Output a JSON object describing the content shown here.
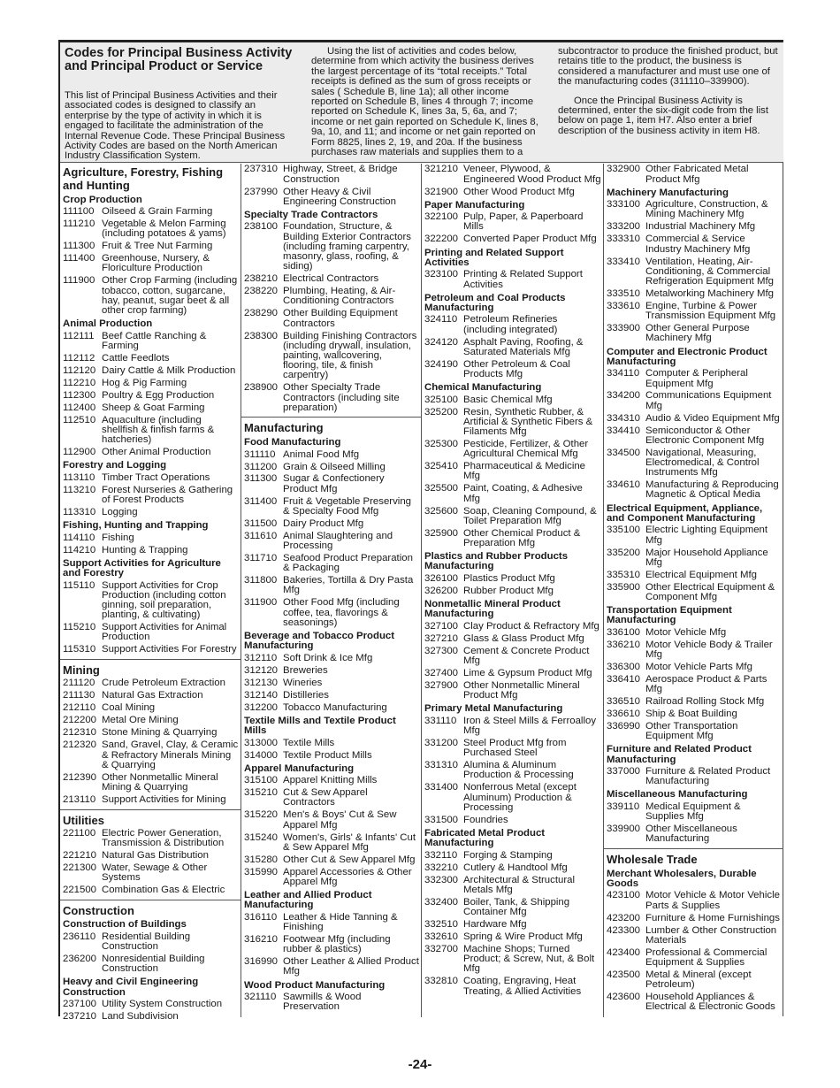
{
  "header": {
    "title": "Codes for Principal Business Activity and Principal Product or Service",
    "intro": "This list of Principal Business Activities and their associated codes is designed to classify an enterprise by the type of activity in which it is engaged to facilitate the administration of the Internal Revenue Code. These Principal Business Activity Codes are based on the North American Industry Classification System.",
    "middle": "Using the list of activities and codes below, determine from which activity the business derives the largest percentage of its “total receipts.” Total receipts is defined as the sum of gross receipts or sales ( Schedule B, line 1a); all other income reported on Schedule B, lines 4 through 7; income reported on Schedule K, lines 3a, 5, 6a, and 7; income or net gain reported on Schedule K, lines 8, 9a, 10, and 11; and income or net gain reported on Form 8825, lines 2, 19, and 20a. If the business purchases raw materials and supplies them to a",
    "right1": "subcontractor to produce the finished product, but retains title to the product, the business is considered a manufacturer and must use one of the manufacturing codes (311110–339900).",
    "right2": "Once the Principal Business Activity is determined, enter the six-digit code from the list below on page 1, item H7. Also enter a brief description of the business activity in item H8."
  },
  "columns": [
    [
      [
        "S",
        "Agriculture, Forestry, Fishing and Hunting"
      ],
      [
        "s",
        "Crop Production"
      ],
      [
        "111100",
        "Oilseed & Grain Farming"
      ],
      [
        "111210",
        "Vegetable & Melon Farming (including potatoes & yams)"
      ],
      [
        "111300",
        "Fruit & Tree Nut Farming"
      ],
      [
        "111400",
        "Greenhouse, Nursery, & Floriculture Production"
      ],
      [
        "111900",
        "Other Crop Farming (including tobacco, cotton, sugarcane, hay, peanut, sugar beet & all other crop farming)"
      ],
      [
        "s",
        "Animal Production"
      ],
      [
        "112111",
        "Beef Cattle Ranching & Farming"
      ],
      [
        "112112",
        "Cattle Feedlots"
      ],
      [
        "112120",
        "Dairy Cattle & Milk Production"
      ],
      [
        "112210",
        "Hog & Pig Farming"
      ],
      [
        "112300",
        "Poultry & Egg Production"
      ],
      [
        "112400",
        "Sheep & Goat Farming"
      ],
      [
        "112510",
        "Aquaculture (including shellfish & finfish farms & hatcheries)"
      ],
      [
        "112900",
        "Other Animal Production"
      ],
      [
        "s",
        "Forestry and Logging"
      ],
      [
        "113110",
        "Timber Tract Operations"
      ],
      [
        "113210",
        "Forest Nurseries & Gathering of Forest Products"
      ],
      [
        "113310",
        "Logging"
      ],
      [
        "s",
        "Fishing, Hunting and Trapping"
      ],
      [
        "114110",
        "Fishing"
      ],
      [
        "114210",
        "Hunting & Trapping"
      ],
      [
        "s",
        "Support Activities for Agriculture and Forestry"
      ],
      [
        "115110",
        "Support Activities for Crop Production (including cotton ginning, soil preparation, planting, & cultivating)"
      ],
      [
        "115210",
        "Support Activities for Animal Production"
      ],
      [
        "115310",
        "Support Activities For Forestry"
      ],
      [
        "S",
        "Mining"
      ],
      [
        "211120",
        "Crude Petroleum Extraction"
      ],
      [
        "211130",
        "Natural Gas Extraction"
      ],
      [
        "212110",
        "Coal Mining"
      ],
      [
        "212200",
        "Metal Ore Mining"
      ],
      [
        "212310",
        "Stone Mining & Quarrying"
      ],
      [
        "212320",
        "Sand, Gravel, Clay, & Ceramic & Refractory Minerals Mining & Quarrying"
      ],
      [
        "212390",
        "Other Nonmetallic Mineral Mining & Quarrying"
      ],
      [
        "213110",
        "Support Activities for Mining"
      ],
      [
        "S",
        "Utilities"
      ],
      [
        "221100",
        "Electric Power Generation, Transmission & Distribution"
      ],
      [
        "221210",
        "Natural Gas Distribution"
      ],
      [
        "221300",
        "Water, Sewage & Other Systems"
      ],
      [
        "221500",
        "Combination Gas & Electric"
      ],
      [
        "S",
        "Construction"
      ],
      [
        "s",
        "Construction of Buildings"
      ],
      [
        "236110",
        "Residential Building Construction"
      ],
      [
        "236200",
        "Nonresidential Building Construction"
      ],
      [
        "s",
        "Heavy and Civil Engineering Construction"
      ],
      [
        "237100",
        "Utility System Construction"
      ],
      [
        "237210",
        "Land Subdivision"
      ]
    ],
    [
      [
        "237310",
        "Highway, Street, & Bridge Construction"
      ],
      [
        "237990",
        "Other Heavy & Civil Engineering Construction"
      ],
      [
        "s",
        "Specialty Trade Contractors"
      ],
      [
        "238100",
        "Foundation, Structure, & Building Exterior Contractors (including framing carpentry, masonry, glass, roofing, & siding)"
      ],
      [
        "238210",
        "Electrical Contractors"
      ],
      [
        "238220",
        "Plumbing, Heating, & Air-Conditioning Contractors"
      ],
      [
        "238290",
        "Other Building Equipment Contractors"
      ],
      [
        "238300",
        "Building Finishing Contractors (including drywall, insulation, painting, wallcovering, flooring, tile, & finish carpentry)"
      ],
      [
        "238900",
        "Other Specialty Trade Contractors (including site preparation)"
      ],
      [
        "S",
        "Manufacturing"
      ],
      [
        "s",
        "Food Manufacturing"
      ],
      [
        "311110",
        "Animal Food Mfg"
      ],
      [
        "311200",
        "Grain & Oilseed Milling"
      ],
      [
        "311300",
        "Sugar & Confectionery Product Mfg"
      ],
      [
        "311400",
        "Fruit & Vegetable Preserving & Specialty Food Mfg"
      ],
      [
        "311500",
        "Dairy Product Mfg"
      ],
      [
        "311610",
        "Animal Slaughtering and Processing"
      ],
      [
        "311710",
        "Seafood Product Preparation & Packaging"
      ],
      [
        "311800",
        "Bakeries, Tortilla & Dry Pasta Mfg"
      ],
      [
        "311900",
        "Other Food Mfg (including coffee, tea, flavorings & seasonings)"
      ],
      [
        "s",
        "Beverage and Tobacco Product Manufacturing"
      ],
      [
        "312110",
        "Soft Drink & Ice Mfg"
      ],
      [
        "312120",
        "Breweries"
      ],
      [
        "312130",
        "Wineries"
      ],
      [
        "312140",
        "Distilleries"
      ],
      [
        "312200",
        "Tobacco Manufacturing"
      ],
      [
        "s",
        "Textile Mills and Textile Product Mills"
      ],
      [
        "313000",
        "Textile Mills"
      ],
      [
        "314000",
        "Textile Product Mills"
      ],
      [
        "s",
        "Apparel Manufacturing"
      ],
      [
        "315100",
        "Apparel Knitting Mills"
      ],
      [
        "315210",
        "Cut & Sew Apparel Contractors"
      ],
      [
        "315220",
        "Men's & Boys' Cut & Sew Apparel Mfg"
      ],
      [
        "315240",
        "Women's, Girls' & Infants' Cut & Sew Apparel Mfg"
      ],
      [
        "315280",
        "Other Cut & Sew Apparel Mfg"
      ],
      [
        "315990",
        "Apparel Accessories & Other Apparel Mfg"
      ],
      [
        "s",
        "Leather and Allied Product Manufacturing"
      ],
      [
        "316110",
        "Leather & Hide Tanning & Finishing"
      ],
      [
        "316210",
        "Footwear Mfg (including rubber & plastics)"
      ],
      [
        "316990",
        "Other Leather & Allied Product Mfg"
      ],
      [
        "s",
        "Wood Product Manufacturing"
      ],
      [
        "321110",
        "Sawmills & Wood Preservation"
      ]
    ],
    [
      [
        "321210",
        "Veneer, Plywood, & Engineered Wood Product Mfg"
      ],
      [
        "321900",
        "Other Wood Product Mfg"
      ],
      [
        "s",
        "Paper Manufacturing"
      ],
      [
        "322100",
        "Pulp, Paper, & Paperboard Mills"
      ],
      [
        "322200",
        "Converted Paper Product Mfg"
      ],
      [
        "s",
        "Printing and Related Support Activities"
      ],
      [
        "323100",
        "Printing & Related Support Activities"
      ],
      [
        "s",
        "Petroleum and Coal Products Manufacturing"
      ],
      [
        "324110",
        "Petroleum Refineries (including integrated)"
      ],
      [
        "324120",
        "Asphalt Paving, Roofing, & Saturated Materials Mfg"
      ],
      [
        "324190",
        "Other Petroleum & Coal Products Mfg"
      ],
      [
        "s",
        "Chemical Manufacturing"
      ],
      [
        "325100",
        "Basic Chemical Mfg"
      ],
      [
        "325200",
        "Resin, Synthetic Rubber, & Artificial & Synthetic Fibers & Filaments Mfg"
      ],
      [
        "325300",
        "Pesticide, Fertilizer, & Other Agricultural Chemical Mfg"
      ],
      [
        "325410",
        "Pharmaceutical & Medicine Mfg"
      ],
      [
        "325500",
        "Paint, Coating, & Adhesive Mfg"
      ],
      [
        "325600",
        "Soap, Cleaning Compound, & Toilet Preparation Mfg"
      ],
      [
        "325900",
        "Other Chemical Product & Preparation Mfg"
      ],
      [
        "s",
        "Plastics and Rubber Products Manufacturing"
      ],
      [
        "326100",
        "Plastics Product Mfg"
      ],
      [
        "326200",
        "Rubber Product Mfg"
      ],
      [
        "s",
        "Nonmetallic Mineral Product Manufacturing"
      ],
      [
        "327100",
        "Clay Product & Refractory Mfg"
      ],
      [
        "327210",
        "Glass & Glass Product Mfg"
      ],
      [
        "327300",
        "Cement & Concrete Product Mfg"
      ],
      [
        "327400",
        "Lime & Gypsum Product Mfg"
      ],
      [
        "327900",
        "Other Nonmetallic Mineral Product Mfg"
      ],
      [
        "s",
        "Primary Metal Manufacturing"
      ],
      [
        "331110",
        "Iron & Steel Mills & Ferroalloy Mfg"
      ],
      [
        "331200",
        "Steel Product Mfg from Purchased Steel"
      ],
      [
        "331310",
        "Alumina & Aluminum Production & Processing"
      ],
      [
        "331400",
        "Nonferrous Metal (except Aluminum) Production & Processing"
      ],
      [
        "331500",
        "Foundries"
      ],
      [
        "s",
        "Fabricated Metal Product Manufacturing"
      ],
      [
        "332110",
        "Forging & Stamping"
      ],
      [
        "332210",
        "Cutlery & Handtool Mfg"
      ],
      [
        "332300",
        "Architectural & Structural Metals Mfg"
      ],
      [
        "332400",
        "Boiler, Tank, & Shipping Container Mfg"
      ],
      [
        "332510",
        "Hardware Mfg"
      ],
      [
        "332610",
        "Spring & Wire Product Mfg"
      ],
      [
        "332700",
        "Machine Shops; Turned Product; & Screw, Nut, & Bolt Mfg"
      ],
      [
        "332810",
        "Coating, Engraving, Heat Treating, & Allied Activities"
      ]
    ],
    [
      [
        "332900",
        "Other Fabricated Metal Product Mfg"
      ],
      [
        "s",
        "Machinery Manufacturing"
      ],
      [
        "333100",
        "Agriculture, Construction, & Mining Machinery Mfg"
      ],
      [
        "333200",
        "Industrial Machinery Mfg"
      ],
      [
        "333310",
        "Commercial & Service Industry Machinery Mfg"
      ],
      [
        "333410",
        "Ventilation, Heating, Air-Conditioning, & Commercial Refrigeration Equipment Mfg"
      ],
      [
        "333510",
        "Metalworking Machinery Mfg"
      ],
      [
        "333610",
        "Engine, Turbine & Power Transmission Equipment Mfg"
      ],
      [
        "333900",
        "Other General Purpose Machinery Mfg"
      ],
      [
        "s",
        "Computer and Electronic Product Manufacturing"
      ],
      [
        "334110",
        "Computer & Peripheral Equipment Mfg"
      ],
      [
        "334200",
        "Communications Equipment Mfg"
      ],
      [
        "334310",
        "Audio & Video Equipment Mfg"
      ],
      [
        "334410",
        "Semiconductor & Other Electronic Component Mfg"
      ],
      [
        "334500",
        "Navigational, Measuring, Electromedical, & Control Instruments Mfg"
      ],
      [
        "334610",
        "Manufacturing & Reproducing Magnetic & Optical Media"
      ],
      [
        "s",
        "Electrical Equipment, Appliance, and Component Manufacturing"
      ],
      [
        "335100",
        "Electric Lighting Equipment Mfg"
      ],
      [
        "335200",
        "Major Household Appliance Mfg"
      ],
      [
        "335310",
        "Electrical Equipment Mfg"
      ],
      [
        "335900",
        "Other Electrical Equipment & Component Mfg"
      ],
      [
        "s",
        "Transportation Equipment Manufacturing"
      ],
      [
        "336100",
        "Motor Vehicle Mfg"
      ],
      [
        "336210",
        "Motor Vehicle Body & Trailer Mfg"
      ],
      [
        "336300",
        "Motor Vehicle Parts Mfg"
      ],
      [
        "336410",
        "Aerospace Product & Parts Mfg"
      ],
      [
        "336510",
        "Railroad Rolling Stock Mfg"
      ],
      [
        "336610",
        "Ship & Boat Building"
      ],
      [
        "336990",
        "Other Transportation Equipment Mfg"
      ],
      [
        "s",
        "Furniture and Related Product Manufacturing"
      ],
      [
        "337000",
        "Furniture & Related Product Manufacturing"
      ],
      [
        "s",
        "Miscellaneous Manufacturing"
      ],
      [
        "339110",
        "Medical Equipment & Supplies Mfg"
      ],
      [
        "339900",
        "Other Miscellaneous Manufacturing"
      ],
      [
        "S",
        "Wholesale Trade"
      ],
      [
        "s",
        "Merchant Wholesalers, Durable Goods"
      ],
      [
        "423100",
        "Motor Vehicle & Motor Vehicle Parts & Supplies"
      ],
      [
        "423200",
        "Furniture & Home Furnishings"
      ],
      [
        "423300",
        "Lumber & Other Construction Materials"
      ],
      [
        "423400",
        "Professional & Commercial Equipment & Supplies"
      ],
      [
        "423500",
        "Metal & Mineral (except Petroleum)"
      ],
      [
        "423600",
        "Household Appliances & Electrical & Electronic Goods"
      ]
    ]
  ],
  "footer": {
    "page_number": "-24-"
  }
}
